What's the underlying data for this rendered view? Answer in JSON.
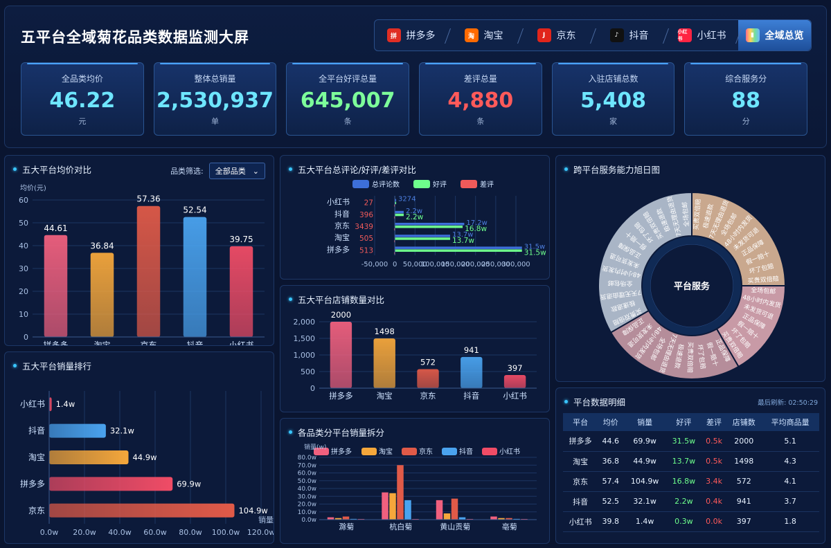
{
  "header": {
    "title": "五平台全域菊花品类数据监测大屏"
  },
  "tabs": [
    {
      "label": "拼多多",
      "icon": "pinduoduo-icon",
      "color": "#e02e24"
    },
    {
      "label": "淘宝",
      "icon": "taobao-icon",
      "color": "#ff6a00"
    },
    {
      "label": "京东",
      "icon": "jd-icon",
      "color": "#e1251b"
    },
    {
      "label": "抖音",
      "icon": "douyin-icon",
      "color": "#111111"
    },
    {
      "label": "小红书",
      "icon": "xiaohongshu-icon",
      "color": "#ff2442"
    },
    {
      "label": "全域总览",
      "icon": "overview-icon",
      "color": "#6fb7ff"
    }
  ],
  "cards": [
    {
      "label": "全品类均价",
      "value": "46.22",
      "unit": "元",
      "color": "#6ee6ff"
    },
    {
      "label": "整体总销量",
      "value": "2,530,937",
      "unit": "单",
      "color": "#6ee6ff"
    },
    {
      "label": "全平台好评总量",
      "value": "645,007",
      "unit": "条",
      "color": "#7dff9a"
    },
    {
      "label": "差评总量",
      "value": "4,880",
      "unit": "条",
      "color": "#ff5a5a"
    },
    {
      "label": "入驻店铺总数",
      "value": "5,408",
      "unit": "家",
      "color": "#6ee6ff"
    },
    {
      "label": "综合服务分",
      "value": "88",
      "unit": "分",
      "color": "#6ee6ff"
    }
  ],
  "panels": {
    "avg_price": {
      "title": "五大平台均价对比",
      "filter_label": "品类筛选:",
      "filter_value": "全部品类"
    },
    "comments": {
      "title": "五大平台总评论/好评/差评对比"
    },
    "sunburst": {
      "title": "跨平台服务能力旭日图",
      "center": "平台服务"
    },
    "sales": {
      "title": "五大平台销量排行"
    },
    "stores": {
      "title": "五大平台店铺数量对比"
    },
    "category": {
      "title": "各品类分平台销量拆分"
    },
    "table": {
      "title": "平台数据明细",
      "refresh": "最后刷新: 02:50:29"
    }
  },
  "chart_data": [
    {
      "id": "avg_price",
      "type": "bar",
      "categories": [
        "拼多多",
        "淘宝",
        "京东",
        "抖音",
        "小红书"
      ],
      "values": [
        44.61,
        36.84,
        57.36,
        52.54,
        39.75
      ],
      "ylabel": "均价(元)",
      "ylim": [
        0,
        60
      ],
      "yticks": [
        0,
        10,
        20,
        30,
        40,
        50,
        60
      ],
      "colors": [
        "#f0607e",
        "#f5a73b",
        "#e05a48",
        "#4aa3ef",
        "#f04c66"
      ]
    },
    {
      "id": "comments",
      "type": "bar",
      "orientation": "horizontal",
      "categories": [
        "拼多多",
        "淘宝",
        "京东",
        "抖音",
        "小红书"
      ],
      "series": [
        {
          "name": "总评论数",
          "color": "#3d6fd8",
          "values": [
            315000,
            137000,
            172000,
            22000,
            3274
          ]
        },
        {
          "name": "好评",
          "color": "#6eff8c",
          "values": [
            315000,
            137000,
            168000,
            22000,
            3274
          ]
        },
        {
          "name": "差评",
          "color": "#f05a5a",
          "values": [
            513,
            505,
            3439,
            396,
            27
          ]
        }
      ],
      "xticks": [
        "-50,000",
        "0",
        "50,000",
        "100,000",
        "150,000",
        "200,000",
        "250,000",
        "300,000"
      ],
      "xlim": [
        -50000,
        300000
      ],
      "labels": {
        "total": [
          "31.5w",
          "13.7w",
          "17.2w",
          "2.2w",
          "3274"
        ],
        "good": [
          "31.5w",
          "13.7w",
          "16.8w",
          "2.2w",
          ""
        ],
        "bad": [
          "513",
          "505",
          "3439",
          "396",
          "27"
        ]
      }
    },
    {
      "id": "sunburst",
      "type": "sunburst",
      "inner": [
        {
          "name": "平台服务",
          "value": 1
        }
      ],
      "segments": [
        {
          "color": "#c9a88e",
          "value": 90
        },
        {
          "color": "#c89aa6",
          "value": 60
        },
        {
          "color": "#b58d9a",
          "value": 90
        },
        {
          "color": "#a9b5c6",
          "value": 120
        }
      ],
      "labels": [
        "买贵双倍赔",
        "极速退款",
        "7天无理由退货",
        "全场包邮",
        "48小时内发货",
        "未发货可退",
        "正品保障",
        "假一赔十",
        "坏了包赔"
      ]
    },
    {
      "id": "sales",
      "type": "bar",
      "orientation": "horizontal",
      "categories": [
        "京东",
        "拼多多",
        "淘宝",
        "抖音",
        "小红书"
      ],
      "values": [
        104.9,
        69.9,
        44.9,
        32.1,
        1.4
      ],
      "value_labels": [
        "104.9w",
        "69.9w",
        "44.9w",
        "32.1w",
        "1.4w"
      ],
      "xticks": [
        "0.0w",
        "20.0w",
        "40.0w",
        "60.0w",
        "80.0w",
        "100.0w",
        "120.0w"
      ],
      "xlim": [
        0,
        120
      ],
      "xlabel": "销量",
      "colors": [
        "#e05a48",
        "#f04c66",
        "#f5a73b",
        "#4aa3ef",
        "#f04c66"
      ]
    },
    {
      "id": "stores",
      "type": "bar",
      "categories": [
        "拼多多",
        "淘宝",
        "京东",
        "抖音",
        "小红书"
      ],
      "values": [
        2000,
        1498,
        572,
        941,
        397
      ],
      "ylim": [
        0,
        2000
      ],
      "yticks": [
        "0",
        "500",
        "1,000",
        "1,500",
        "2,000"
      ],
      "colors": [
        "#f0607e",
        "#f5a73b",
        "#e05a48",
        "#4aa3ef",
        "#f04c66"
      ]
    },
    {
      "id": "category",
      "type": "bar",
      "categories": [
        "滁菊",
        "杭白菊",
        "黄山贡菊",
        "亳菊"
      ],
      "ylabel": "销量(w)",
      "ylim": [
        0,
        80
      ],
      "yticks": [
        "0.0w",
        "10.0w",
        "20.0w",
        "30.0w",
        "40.0w",
        "50.0w",
        "60.0w",
        "70.0w",
        "80.0w"
      ],
      "series": [
        {
          "name": "拼多多",
          "color": "#f0607e",
          "values": [
            3,
            35,
            25,
            4
          ]
        },
        {
          "name": "淘宝",
          "color": "#f5a73b",
          "values": [
            2,
            34,
            8,
            2
          ]
        },
        {
          "name": "京东",
          "color": "#e05a48",
          "values": [
            4,
            70,
            27,
            2
          ]
        },
        {
          "name": "抖音",
          "color": "#4aa3ef",
          "values": [
            1,
            25,
            3,
            1
          ]
        },
        {
          "name": "小红书",
          "color": "#f04c66",
          "values": [
            0.3,
            0.5,
            0.4,
            0.2
          ]
        }
      ]
    }
  ],
  "table_data": {
    "headers": [
      "平台",
      "均价",
      "销量",
      "好评",
      "差评",
      "店铺数",
      "平均商品量"
    ],
    "rows": [
      [
        "拼多多",
        "44.6",
        "69.9w",
        "31.5w",
        "0.5k",
        "2000",
        "5.1"
      ],
      [
        "淘宝",
        "36.8",
        "44.9w",
        "13.7w",
        "0.5k",
        "1498",
        "4.3"
      ],
      [
        "京东",
        "57.4",
        "104.9w",
        "16.8w",
        "3.4k",
        "572",
        "4.1"
      ],
      [
        "抖音",
        "52.5",
        "32.1w",
        "2.2w",
        "0.4k",
        "941",
        "3.7"
      ],
      [
        "小红书",
        "39.8",
        "1.4w",
        "0.3w",
        "0.0k",
        "397",
        "1.8"
      ]
    ]
  }
}
